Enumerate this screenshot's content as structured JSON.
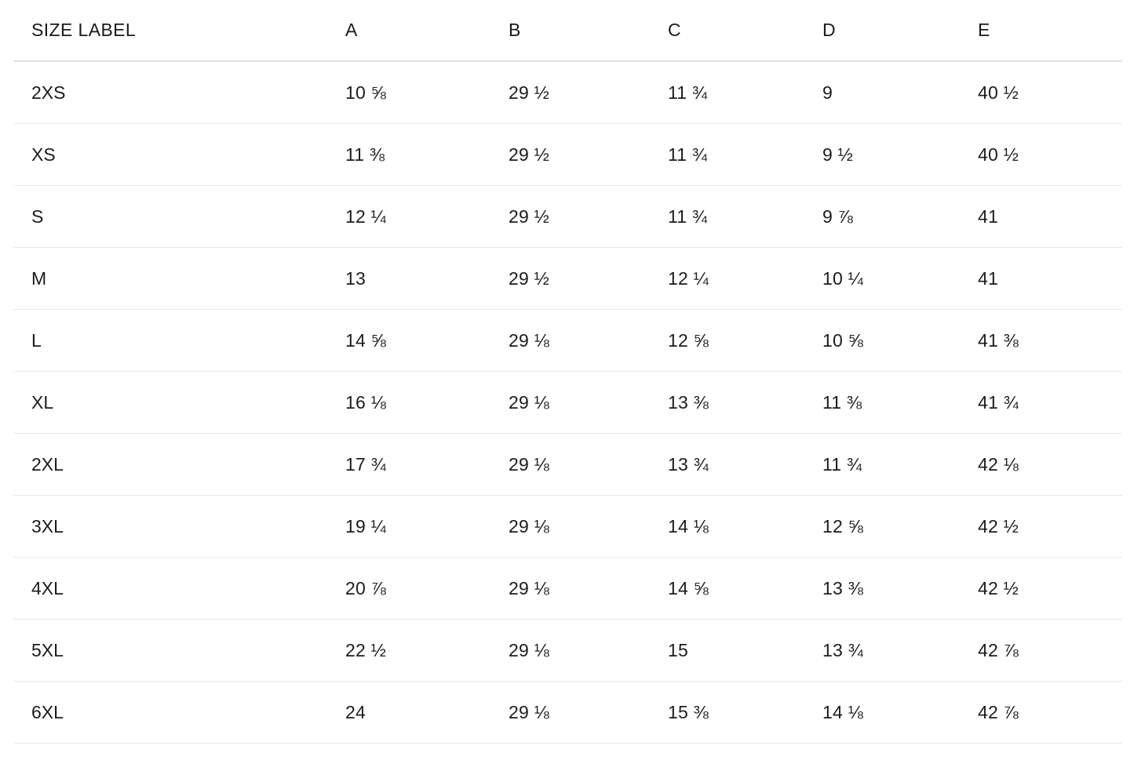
{
  "table": {
    "columns": [
      "SIZE LABEL",
      "A",
      "B",
      "C",
      "D",
      "E"
    ],
    "rows": [
      {
        "label": "2XS",
        "values": [
          "10 ⅝",
          "29 ½",
          "11 ¾",
          "9",
          "40 ½"
        ]
      },
      {
        "label": "XS",
        "values": [
          "11 ⅜",
          "29 ½",
          "11 ¾",
          "9 ½",
          "40 ½"
        ]
      },
      {
        "label": "S",
        "values": [
          "12 ¼",
          "29 ½",
          "11 ¾",
          "9 ⅞",
          "41"
        ]
      },
      {
        "label": "M",
        "values": [
          "13",
          "29 ½",
          "12 ¼",
          "10 ¼",
          "41"
        ]
      },
      {
        "label": "L",
        "values": [
          "14 ⅝",
          "29 ⅛",
          "12 ⅝",
          "10 ⅝",
          "41 ⅜"
        ]
      },
      {
        "label": "XL",
        "values": [
          "16 ⅛",
          "29 ⅛",
          "13 ⅜",
          "11 ⅜",
          "41 ¾"
        ]
      },
      {
        "label": "2XL",
        "values": [
          "17 ¾",
          "29 ⅛",
          "13 ¾",
          "11 ¾",
          "42 ⅛"
        ]
      },
      {
        "label": "3XL",
        "values": [
          "19 ¼",
          "29 ⅛",
          "14 ⅛",
          "12 ⅝",
          "42 ½"
        ]
      },
      {
        "label": "4XL",
        "values": [
          "20 ⅞",
          "29 ⅛",
          "14 ⅝",
          "13 ⅜",
          "42 ½"
        ]
      },
      {
        "label": "5XL",
        "values": [
          "22 ½",
          "29 ⅛",
          "15",
          "13 ¾",
          "42 ⅞"
        ]
      },
      {
        "label": "6XL",
        "values": [
          "24",
          "29 ⅛",
          "15 ⅜",
          "14 ⅛",
          "42 ⅞"
        ]
      }
    ]
  },
  "colors": {
    "text": "#1c1c1c",
    "header_divider": "#e2e2e2",
    "row_divider": "#e7e7e7",
    "background": "#ffffff"
  }
}
